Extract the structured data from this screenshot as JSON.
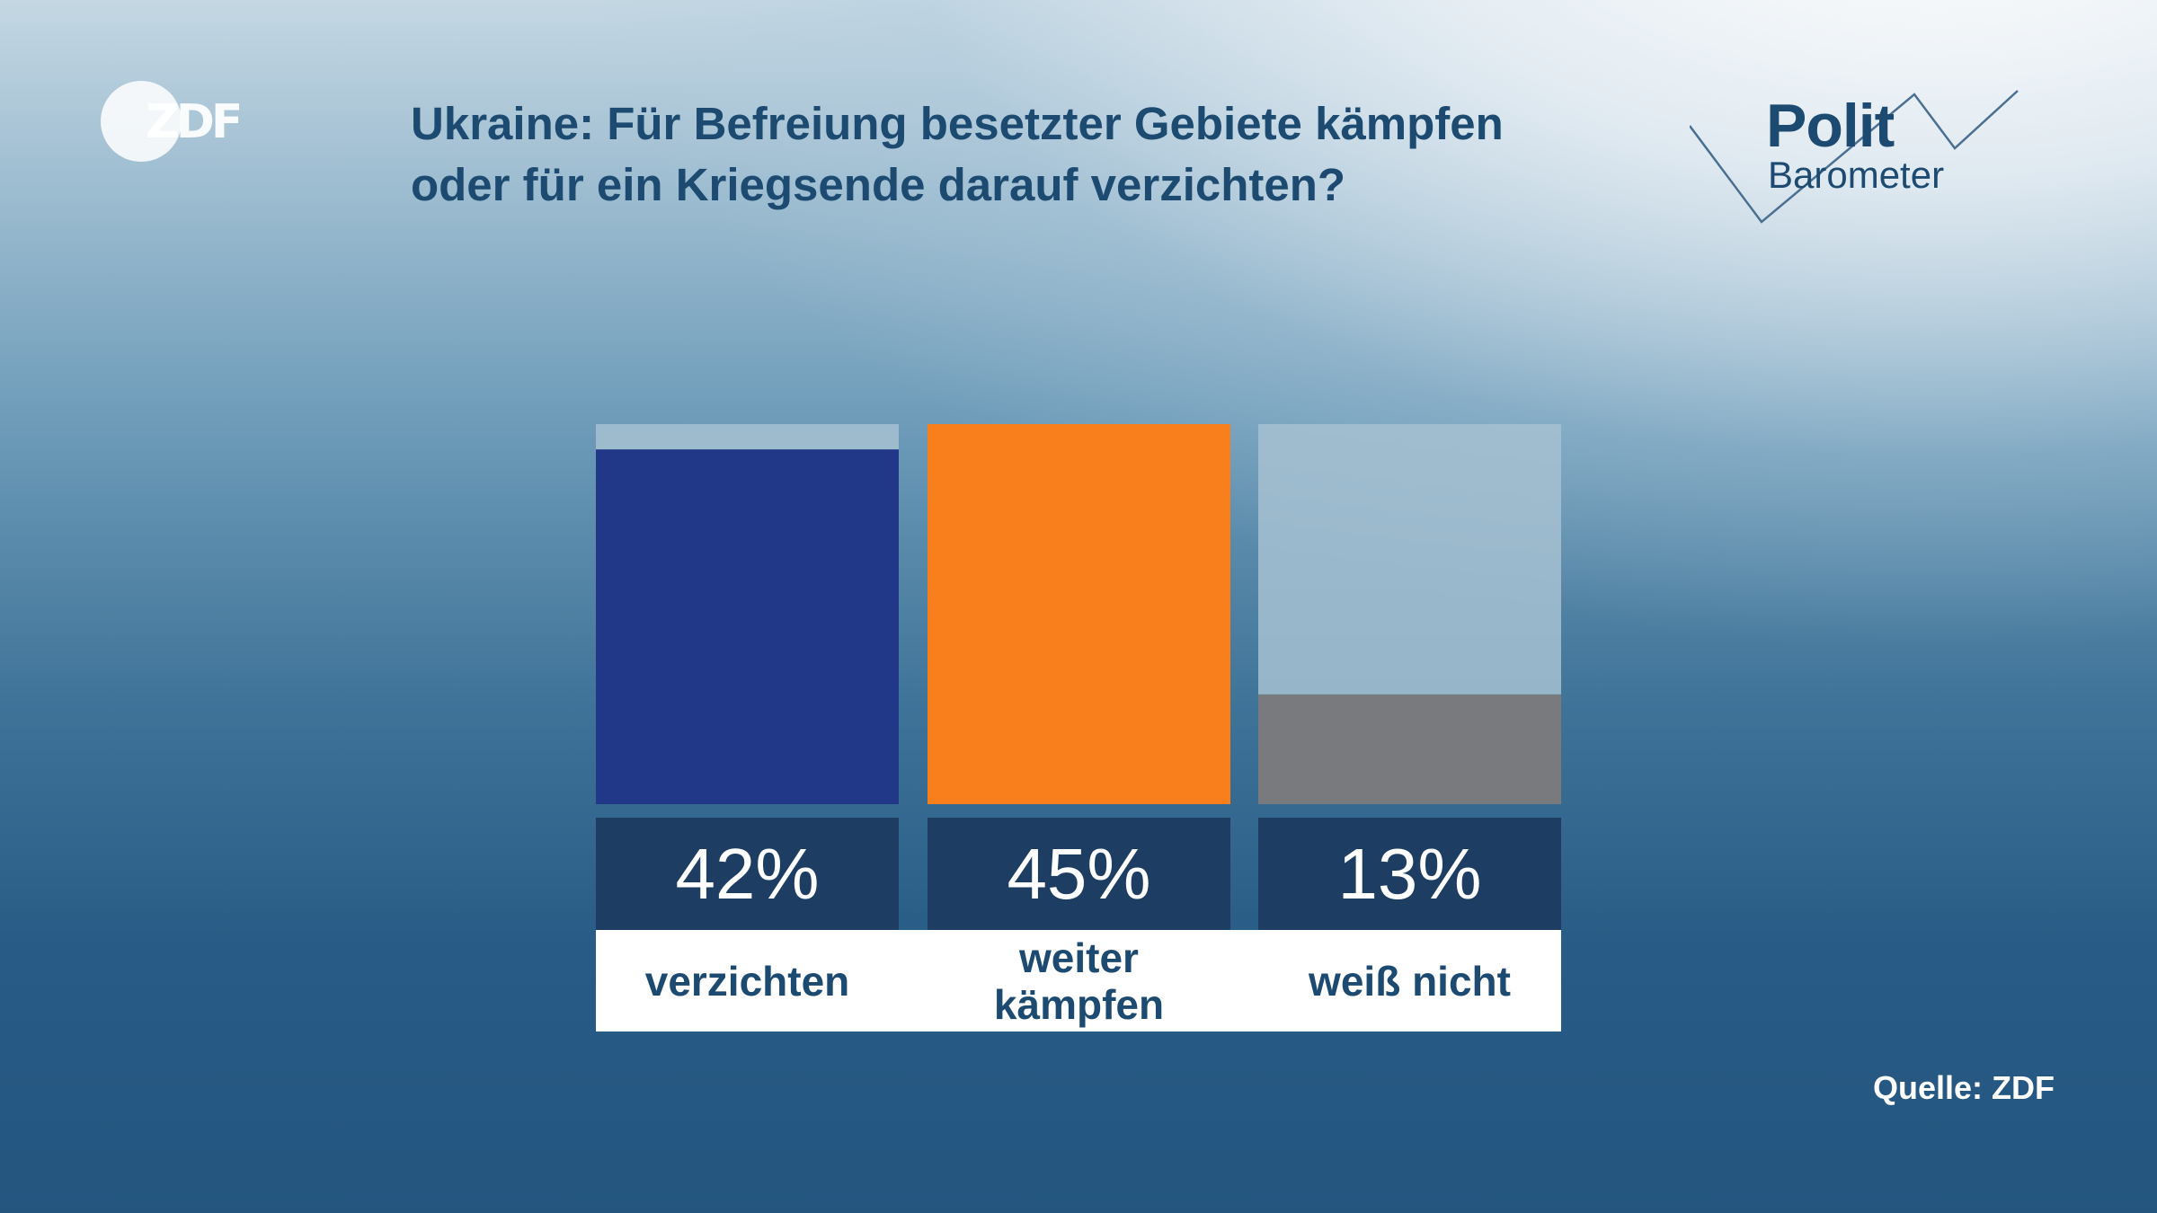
{
  "brand": {
    "zdf_logo_text": "ZDF",
    "polit_text": "Polit",
    "barometer_text": "Barometer"
  },
  "title_lines": [
    "Ukraine: Für Befreiung besetzter Gebiete kämpfen",
    "oder für ein Kriegsende darauf verzichten?"
  ],
  "source": "Quelle: ZDF",
  "colors": {
    "title": "#1c4a70",
    "bar_background": "#a6c1d1",
    "value_box": "#1d3d62"
  },
  "chart_data": {
    "type": "bar",
    "categories": [
      "verzichten",
      "weiter kämpfen",
      "weiß nicht"
    ],
    "values": [
      42,
      45,
      13
    ],
    "value_labels": [
      "42%",
      "45%",
      "13%"
    ],
    "category_label_lines": [
      [
        "verzichten"
      ],
      [
        "weiter",
        "kämpfen"
      ],
      [
        "weiß nicht"
      ]
    ],
    "colors": [
      "#213889",
      "#f97e1c",
      "#797a7e"
    ],
    "ylim": [
      0,
      45
    ],
    "unit": "%",
    "grid": false,
    "legend": "none"
  }
}
